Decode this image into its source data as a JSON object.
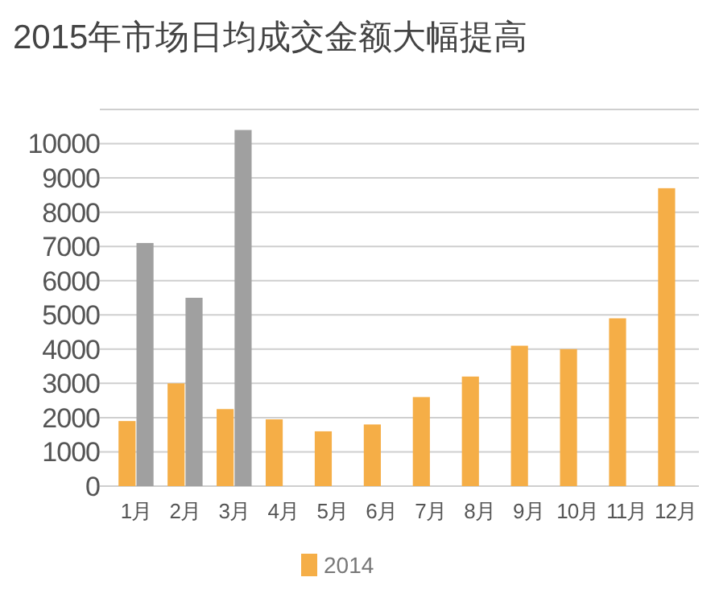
{
  "chart_data": {
    "type": "bar",
    "title": "2015年市场日均成交金额大幅提高",
    "categories": [
      "1月",
      "2月",
      "3月",
      "4月",
      "5月",
      "6月",
      "7月",
      "8月",
      "9月",
      "10月",
      "11月",
      "12月"
    ],
    "series": [
      {
        "name": "2014",
        "color": "#f5ae47",
        "values": [
          1900,
          3000,
          2250,
          1950,
          1600,
          1800,
          2600,
          3200,
          4100,
          4000,
          4900,
          8700
        ]
      },
      {
        "color": "#a0a0a0",
        "values": [
          7100,
          5500,
          10400,
          null,
          null,
          null,
          null,
          null,
          null,
          null,
          null,
          null
        ]
      }
    ],
    "ylim": [
      0,
      11000
    ],
    "yticks": [
      0,
      1000,
      2000,
      3000,
      4000,
      5000,
      6000,
      7000,
      8000,
      9000,
      10000,
      {
        "value": 11000,
        "label": null
      }
    ],
    "grid": "y",
    "legend": "bottom"
  }
}
